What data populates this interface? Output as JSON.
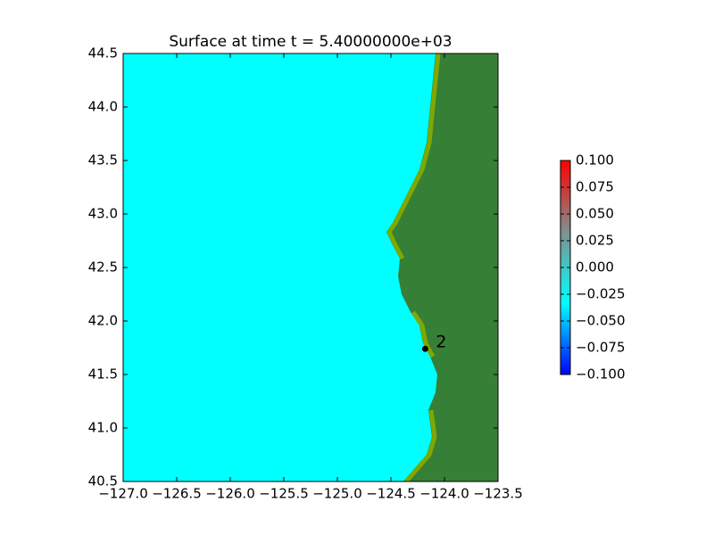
{
  "chart_data": {
    "type": "map",
    "title": "Surface at time t = 5.40000000e+03",
    "xlim": [
      -127.0,
      -123.5
    ],
    "ylim": [
      40.5,
      44.5
    ],
    "xticks": [
      {
        "value": -127.0,
        "label": "−127.0"
      },
      {
        "value": -126.5,
        "label": "−126.5"
      },
      {
        "value": -126.0,
        "label": "−126.0"
      },
      {
        "value": -125.5,
        "label": "−125.5"
      },
      {
        "value": -125.0,
        "label": "−125.0"
      },
      {
        "value": -124.5,
        "label": "−124.5"
      },
      {
        "value": -124.0,
        "label": "−124.0"
      },
      {
        "value": -123.5,
        "label": "−123.5"
      }
    ],
    "yticks": [
      40.5,
      {
        "value": 41.0,
        "label": "41.0"
      },
      41.5,
      {
        "value": 42.0,
        "label": "42.0"
      },
      42.5,
      {
        "value": 43.0,
        "label": "43.0"
      },
      43.5,
      {
        "value": 44.0,
        "label": "44.0"
      },
      44.5
    ],
    "ocean_color": "#00ffff",
    "land_color": "#367f37",
    "shore_color": "#7fa800",
    "gauges": [
      {
        "label": "2",
        "x": -124.18,
        "y": 41.74
      }
    ],
    "colorbar": {
      "lim": [
        -0.1,
        0.1
      ],
      "colors": [
        "#0000ff",
        "#00ffff",
        "#7f9090",
        "#ff0000"
      ],
      "ticks": [
        {
          "value": -0.1,
          "label": "−0.100"
        },
        {
          "value": -0.075,
          "label": "−0.075"
        },
        {
          "value": -0.05,
          "label": "−0.050"
        },
        {
          "value": -0.025,
          "label": "−0.025"
        },
        {
          "value": 0,
          "label": "0.000"
        },
        0.025,
        {
          "value": 0.05,
          "label": "0.050"
        },
        0.075,
        {
          "value": 0.1,
          "label": "0.100"
        }
      ]
    }
  }
}
